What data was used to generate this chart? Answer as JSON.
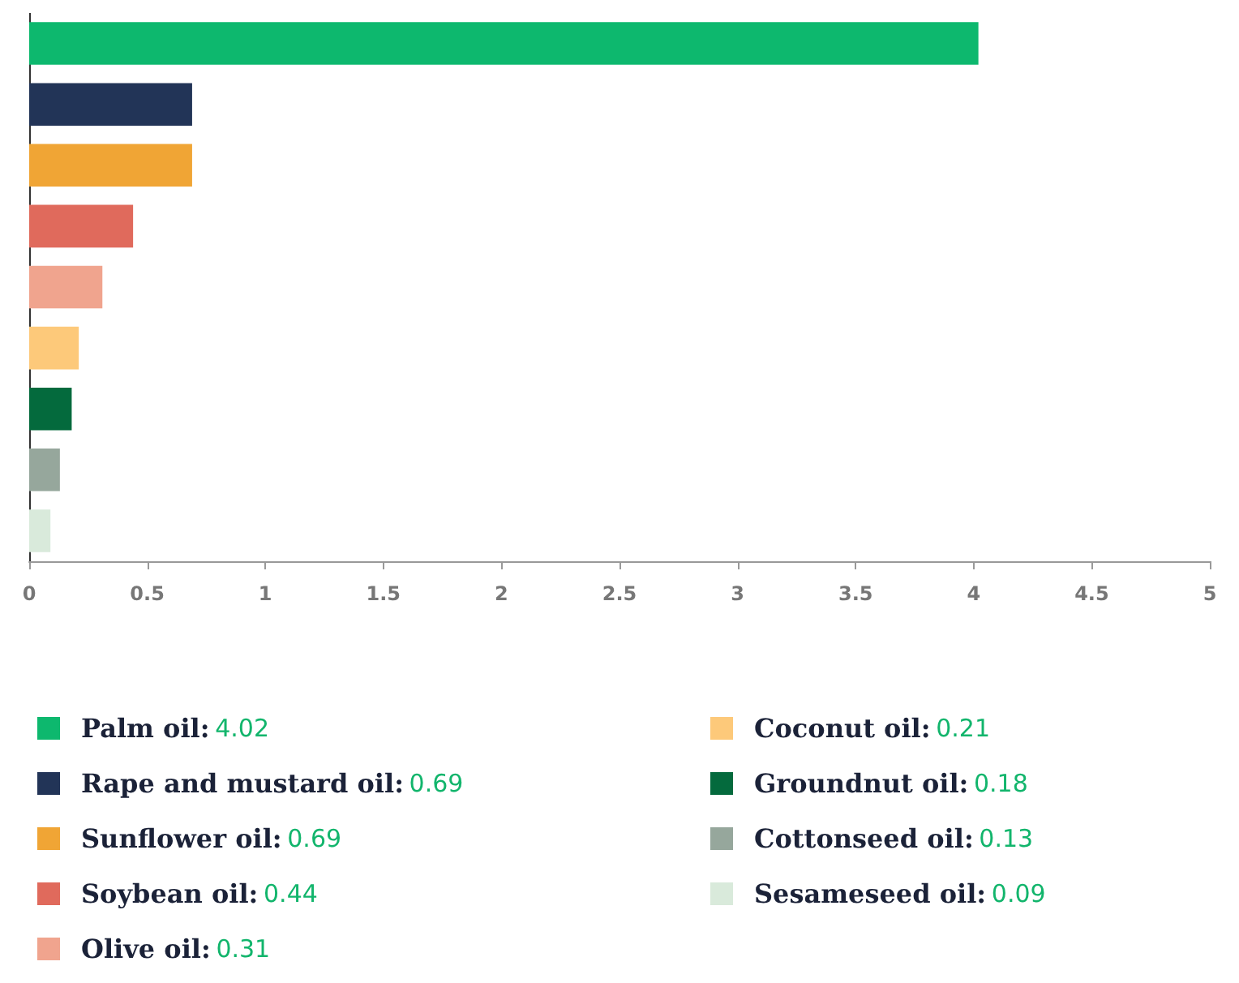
{
  "chart_data": {
    "type": "bar",
    "orientation": "horizontal",
    "categories": [
      null,
      null,
      null,
      null,
      null,
      null,
      null,
      null,
      null
    ],
    "series": [
      {
        "name": "Palm oil: 4.02",
        "color": "#0db86e",
        "values": [
          4.02,
          null,
          null,
          null,
          null,
          null,
          null,
          null,
          null
        ]
      },
      {
        "name": "Rape and mustard oil: 0.69",
        "color": "#223457",
        "values": [
          null,
          0.69,
          null,
          null,
          null,
          null,
          null,
          null,
          null
        ]
      },
      {
        "name": "Sunflower oil: 0.69",
        "color": "#f0a535",
        "values": [
          null,
          null,
          0.69,
          null,
          null,
          null,
          null,
          null,
          null
        ]
      },
      {
        "name": "Soybean oil: 0.44",
        "color": "#e06a5c",
        "values": [
          null,
          null,
          null,
          0.44,
          null,
          null,
          null,
          null,
          null
        ]
      },
      {
        "name": "Olive oil: 0.31",
        "color": "#f0a48e",
        "values": [
          null,
          null,
          null,
          null,
          0.31,
          null,
          null,
          null,
          null
        ]
      },
      {
        "name": "Coconut oil: 0.21",
        "color": "#fdc97a",
        "values": [
          null,
          null,
          null,
          null,
          null,
          0.21,
          null,
          null,
          null
        ]
      },
      {
        "name": "Groundnut oil: 0.18",
        "color": "#046a3d",
        "values": [
          null,
          null,
          null,
          null,
          null,
          null,
          0.18,
          null,
          null
        ]
      },
      {
        "name": "Cottonseed oil: 0.13",
        "color": "#96a79c",
        "values": [
          null,
          null,
          null,
          null,
          null,
          null,
          null,
          0.13,
          null
        ]
      },
      {
        "name": "Sesameseed oil: 0.09",
        "color": "#d9eadb",
        "values": [
          null,
          null,
          null,
          null,
          null,
          null,
          null,
          null,
          0.09
        ]
      }
    ],
    "xlim": [
      0,
      5
    ],
    "xticks": [
      0,
      0.5,
      1,
      1.5,
      2,
      2.5,
      3,
      3.5,
      4,
      4.5,
      5
    ],
    "tick_labels": "x",
    "grid": false,
    "legend": "bottom"
  }
}
